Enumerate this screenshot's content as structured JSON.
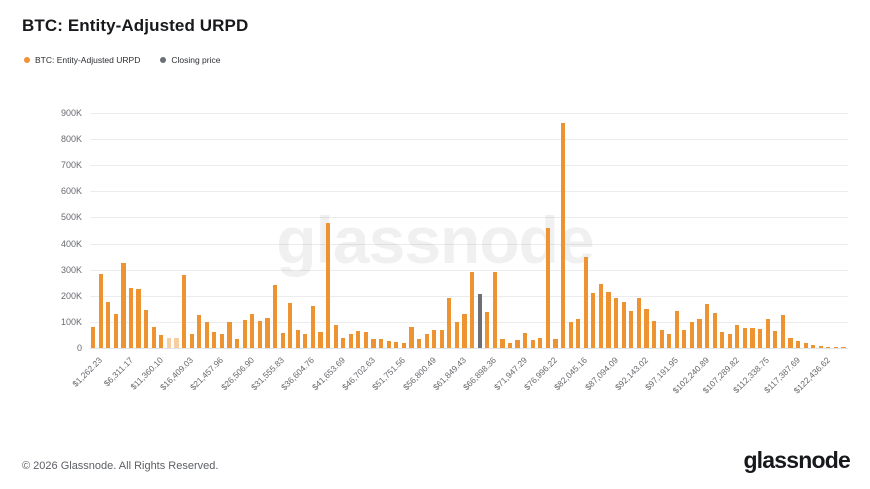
{
  "header": {
    "title": "BTC: Entity-Adjusted URPD"
  },
  "legend": [
    {
      "label": "BTC: Entity-Adjusted URPD",
      "color": "#f09235"
    },
    {
      "label": "Closing price",
      "color": "#6b6f76"
    }
  ],
  "watermark": "glassnode",
  "footer": {
    "copyright": "© 2026 Glassnode. All Rights Reserved.",
    "logo": "glassnode"
  },
  "chart_data": {
    "type": "bar",
    "title": "BTC: Entity-Adjusted URPD",
    "xlabel": "",
    "ylabel": "",
    "ylim": [
      0,
      900000
    ],
    "grid": true,
    "legend_position": "top-left",
    "y_ticks": [
      "900K",
      "800K",
      "700K",
      "600K",
      "500K",
      "400K",
      "300K",
      "200K",
      "100K",
      "0"
    ],
    "x_tick_labels": [
      "$1,262.23",
      "$6,311.17",
      "$11,360.10",
      "$16,409.03",
      "$21,457.96",
      "$26,506.90",
      "$31,555.83",
      "$36,604.76",
      "$41,653.69",
      "$46,702.63",
      "$51,751.56",
      "$56,800.49",
      "$61,849.43",
      "$66,898.36",
      "$71,947.29",
      "$76,996.22",
      "$82,045.16",
      "$87,094.09",
      "$92,143.02",
      "$97,191.95",
      "$102,240.89",
      "$107,289.82",
      "$112,338.75",
      "$117,387.69",
      "$122,436.62"
    ],
    "x_tick_every": 4,
    "bucket_width_usd": 1262.23,
    "bar_color": "#ee9331",
    "closing_price_color": "#6b6f76",
    "closing_price_index": 51,
    "faded_indices": [
      10,
      11
    ],
    "values": [
      80000,
      285000,
      175000,
      130000,
      325000,
      230000,
      225000,
      145000,
      80000,
      50000,
      38000,
      40000,
      280000,
      52000,
      128000,
      98000,
      60000,
      52000,
      100000,
      33000,
      107000,
      132000,
      103000,
      116000,
      243000,
      56000,
      172000,
      70000,
      52000,
      160000,
      60000,
      480000,
      90000,
      40000,
      52000,
      66000,
      62000,
      36000,
      34000,
      28000,
      24000,
      18000,
      80000,
      33000,
      55000,
      68000,
      68000,
      190000,
      98000,
      132000,
      290000,
      206000,
      139000,
      290000,
      33000,
      20000,
      30000,
      58000,
      30000,
      37000,
      460000,
      35000,
      860000,
      100000,
      110000,
      350000,
      210000,
      245000,
      215000,
      190000,
      175000,
      140000,
      190000,
      148000,
      105000,
      70000,
      55000,
      140000,
      70000,
      100000,
      110000,
      170000,
      135000,
      60000,
      53000,
      88000,
      75000,
      75000,
      72000,
      110000,
      65000,
      125000,
      40000,
      25000,
      20000,
      12000,
      8000,
      3000,
      5000,
      2000
    ]
  }
}
